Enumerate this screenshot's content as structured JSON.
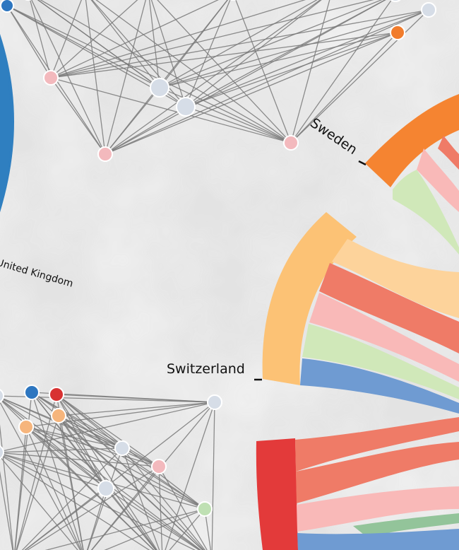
{
  "labels": {
    "sweden": "Sweden",
    "switzerland": "Switzerland",
    "united_kingdom": "United Kingdom"
  },
  "colors": {
    "background": "#e6e6e6",
    "edge": "#7a7a7a",
    "sweden_arc": "#f58431",
    "switzerland_arc": "#fcc275",
    "red_arc": "#e33a3a",
    "uk_arc": "#2f7fc0",
    "ribbon_orange_light": "#fdd39b",
    "ribbon_red": "#ef7b67",
    "ribbon_pink": "#f9b9b8",
    "ribbon_green": "#d0e8b9",
    "ribbon_blue": "#6f9bd2",
    "node_pink": "#f3b9bd",
    "node_light": "#d6dde7",
    "node_orange": "#f17c2c",
    "node_green": "#bfe0b3",
    "node_blue": "#2d76c0",
    "node_red": "#d83232",
    "node_peach": "#f6b57c"
  }
}
